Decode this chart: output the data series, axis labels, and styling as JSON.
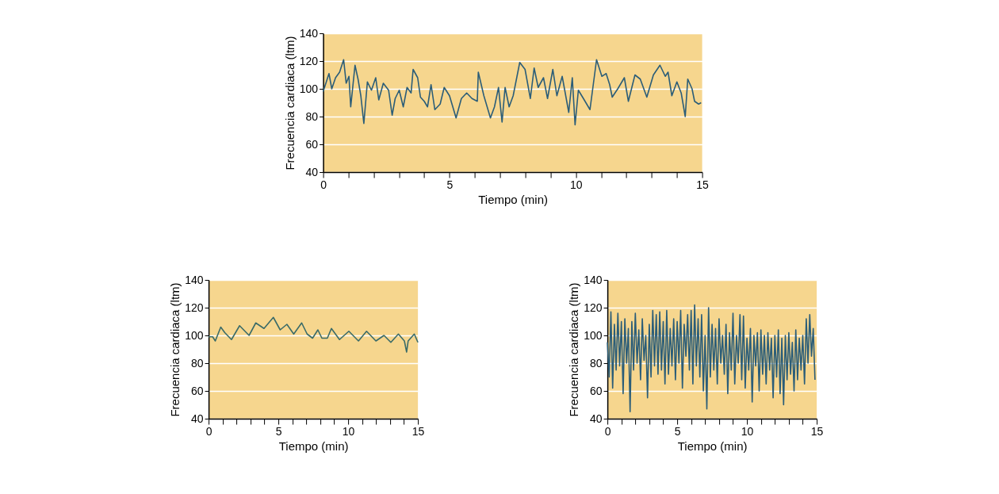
{
  "chart_data": [
    {
      "type": "line",
      "xlabel": "Tiempo (min)",
      "ylabel": "Frecuencia cardiaca (ltm)",
      "xlim": [
        0,
        15
      ],
      "ylim": [
        40,
        140
      ],
      "xticks": [
        0,
        {
          "value": 1,
          "label": null
        },
        {
          "value": 2,
          "label": null
        },
        {
          "value": 3,
          "label": null
        },
        {
          "value": 4,
          "label": null
        },
        5,
        {
          "value": 6,
          "label": null
        },
        {
          "value": 7,
          "label": null
        },
        {
          "value": 8,
          "label": null
        },
        {
          "value": 9,
          "label": null
        },
        10,
        {
          "value": 11,
          "label": null
        },
        {
          "value": 12,
          "label": null
        },
        {
          "value": 13,
          "label": null
        },
        {
          "value": 14,
          "label": null
        },
        15
      ],
      "yticks": [
        40,
        60,
        80,
        100,
        120,
        140
      ],
      "grid": "y",
      "series": [
        {
          "color": "#2b5d78",
          "x": [
            0,
            0.23,
            0.34,
            0.49,
            0.65,
            0.81,
            0.91,
            1.02,
            1.09,
            1.26,
            1.38,
            1.49,
            1.61,
            1.75,
            1.91,
            2.08,
            2.2,
            2.38,
            2.59,
            2.73,
            2.85,
            3.01,
            3.17,
            3.32,
            3.48,
            3.56,
            3.74,
            3.85,
            4.0,
            4.13,
            4.27,
            4.42,
            4.63,
            4.79,
            5.0,
            5.26,
            5.47,
            5.68,
            5.89,
            6.1,
            6.14,
            6.36,
            6.62,
            6.78,
            6.94,
            7.08,
            7.2,
            7.36,
            7.52,
            7.78,
            7.99,
            8.2,
            8.35,
            8.51,
            8.72,
            8.88,
            9.09,
            9.25,
            9.46,
            9.72,
            9.86,
            9.97,
            10.1,
            10.3,
            10.56,
            10.82,
            11.03,
            11.2,
            11.34,
            11.44,
            11.66,
            11.92,
            12.08,
            12.34,
            12.55,
            12.81,
            13.07,
            13.33,
            13.54,
            13.65,
            13.8,
            14.0,
            14.17,
            14.33,
            14.43,
            14.6,
            14.7,
            14.86,
            14.96
          ],
          "values": [
            98,
            111,
            100,
            108,
            112,
            121,
            104,
            109,
            87,
            117,
            107,
            95,
            75,
            105,
            99,
            108,
            92,
            104,
            99,
            81,
            93,
            99,
            87,
            101,
            97,
            114,
            108,
            94,
            91,
            87,
            103,
            85,
            89,
            101,
            95,
            79,
            93,
            97,
            93,
            91,
            112,
            95,
            79,
            87,
            101,
            76,
            101,
            87,
            95,
            119,
            114,
            93,
            115,
            101,
            108,
            93,
            114,
            95,
            109,
            83,
            108,
            74,
            99,
            93,
            85,
            121,
            109,
            111,
            103,
            94,
            100,
            108,
            91,
            110,
            107,
            94,
            110,
            117,
            109,
            112,
            95,
            105,
            97,
            80,
            107,
            100,
            91,
            89,
            90
          ]
        }
      ]
    },
    {
      "type": "line",
      "xlabel": "Tiempo (min)",
      "ylabel": "Frecuencia cardiaca (ltm)",
      "xlim": [
        0,
        15
      ],
      "ylim": [
        40,
        140
      ],
      "xticks": [
        0,
        {
          "value": 1,
          "label": null
        },
        {
          "value": 2,
          "label": null
        },
        {
          "value": 3,
          "label": null
        },
        {
          "value": 4,
          "label": null
        },
        5,
        {
          "value": 6,
          "label": null
        },
        {
          "value": 7,
          "label": null
        },
        {
          "value": 8,
          "label": null
        },
        {
          "value": 9,
          "label": null
        },
        10,
        {
          "value": 11,
          "label": null
        },
        {
          "value": 12,
          "label": null
        },
        {
          "value": 13,
          "label": null
        },
        {
          "value": 14,
          "label": null
        },
        15
      ],
      "yticks": [
        40,
        60,
        80,
        100,
        120,
        140
      ],
      "grid": "y",
      "series": [
        {
          "color": "#3a6b68",
          "x": [
            0,
            0.29,
            0.48,
            0.87,
            1.16,
            1.64,
            2.22,
            2.9,
            3.38,
            3.97,
            4.64,
            5.13,
            5.61,
            6.1,
            6.67,
            7.06,
            7.45,
            7.83,
            8.12,
            8.51,
            8.8,
            9.38,
            10.05,
            10.74,
            11.32,
            11.99,
            12.57,
            13.06,
            13.6,
            14.03,
            14.19,
            14.3,
            14.74,
            15
          ],
          "values": [
            99,
            99,
            96,
            106,
            102,
            97,
            107,
            100,
            109,
            105,
            113,
            104,
            108,
            101,
            109,
            101,
            98,
            104,
            98,
            98,
            105,
            97,
            103,
            96,
            103,
            96,
            100,
            95,
            101,
            96,
            88,
            96,
            101,
            95
          ]
        }
      ]
    },
    {
      "type": "line",
      "xlabel": "Tiempo (min)",
      "ylabel": "Frecuencia cardiaca (ltm)",
      "xlim": [
        0,
        15
      ],
      "ylim": [
        40,
        140
      ],
      "xticks": [
        0,
        {
          "value": 1,
          "label": null
        },
        {
          "value": 2,
          "label": null
        },
        {
          "value": 3,
          "label": null
        },
        {
          "value": 4,
          "label": null
        },
        5,
        {
          "value": 6,
          "label": null
        },
        {
          "value": 7,
          "label": null
        },
        {
          "value": 8,
          "label": null
        },
        {
          "value": 9,
          "label": null
        },
        10,
        {
          "value": 11,
          "label": null
        },
        {
          "value": 12,
          "label": null
        },
        {
          "value": 13,
          "label": null
        },
        {
          "value": 14,
          "label": null
        },
        15
      ],
      "yticks": [
        40,
        60,
        80,
        100,
        120,
        140
      ],
      "grid": "y",
      "series": [
        {
          "color": "#2b5d78",
          "x": [
            0,
            0.125,
            0.25,
            0.375,
            0.5,
            0.625,
            0.75,
            0.875,
            1.0,
            1.125,
            1.25,
            1.375,
            1.5,
            1.625,
            1.75,
            1.875,
            2.0,
            2.125,
            2.25,
            2.375,
            2.5,
            2.625,
            2.75,
            2.875,
            3.0,
            3.125,
            3.25,
            3.375,
            3.5,
            3.625,
            3.75,
            3.875,
            4.0,
            4.125,
            4.25,
            4.375,
            4.5,
            4.625,
            4.75,
            4.875,
            5.0,
            5.125,
            5.25,
            5.375,
            5.5,
            5.625,
            5.75,
            5.875,
            6.0,
            6.125,
            6.25,
            6.375,
            6.5,
            6.625,
            6.75,
            6.875,
            7.0,
            7.125,
            7.25,
            7.375,
            7.5,
            7.625,
            7.75,
            7.875,
            8.0,
            8.125,
            8.25,
            8.375,
            8.5,
            8.625,
            8.75,
            8.875,
            9.0,
            9.125,
            9.25,
            9.375,
            9.5,
            9.625,
            9.75,
            9.875,
            10.0,
            10.125,
            10.25,
            10.375,
            10.5,
            10.625,
            10.75,
            10.875,
            11.0,
            11.125,
            11.25,
            11.375,
            11.5,
            11.625,
            11.75,
            11.875,
            12.0,
            12.125,
            12.25,
            12.375,
            12.5,
            12.625,
            12.75,
            12.875,
            13.0,
            13.125,
            13.25,
            13.375,
            13.5,
            13.625,
            13.75,
            13.875,
            14.0,
            14.125,
            14.25,
            14.375,
            14.5,
            14.625,
            14.75,
            14.875
          ],
          "values": [
            95,
            70,
            117,
            62,
            108,
            75,
            116,
            78,
            110,
            58,
            112,
            80,
            105,
            45,
            110,
            75,
            116,
            80,
            104,
            68,
            112,
            82,
            100,
            55,
            108,
            70,
            118,
            78,
            115,
            72,
            117,
            75,
            110,
            65,
            118,
            72,
            105,
            78,
            112,
            68,
            110,
            80,
            118,
            62,
            108,
            85,
            115,
            75,
            118,
            65,
            122,
            78,
            112,
            70,
            115,
            60,
            100,
            47,
            120,
            70,
            108,
            75,
            105,
            65,
            112,
            80,
            100,
            72,
            108,
            58,
            102,
            75,
            116,
            65,
            100,
            80,
            115,
            68,
            114,
            62,
            98,
            75,
            105,
            52,
            100,
            78,
            102,
            60,
            104,
            72,
            100,
            65,
            102,
            75,
            98,
            55,
            100,
            70,
            104,
            58,
            98,
            50,
            100,
            68,
            102,
            72,
            95,
            60,
            104,
            68,
            98,
            75,
            100,
            65,
            112,
            80,
            115,
            85,
            105,
            68
          ]
        }
      ]
    }
  ]
}
